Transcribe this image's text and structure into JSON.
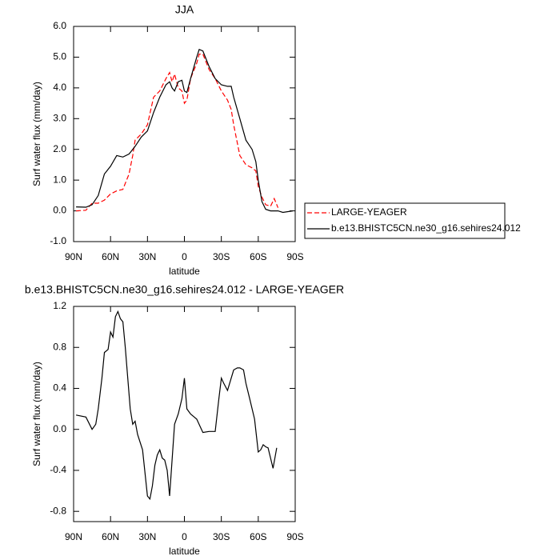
{
  "chart_data": [
    {
      "type": "line",
      "title": "JJA",
      "y_label": "Surf water flux (mm/day)",
      "x_label": "latitude",
      "x": [
        88,
        80,
        75,
        70,
        65,
        60,
        55,
        50,
        45,
        42,
        40,
        35,
        30,
        25,
        20,
        15,
        12,
        10,
        8,
        5,
        2,
        0,
        -2,
        -5,
        -10,
        -12,
        -15,
        -20,
        -25,
        -30,
        -35,
        -38,
        -40,
        -45,
        -50,
        -55,
        -58,
        -60,
        -63,
        -66,
        -70,
        -73,
        -76,
        -80,
        -88
      ],
      "series": [
        {
          "name": "LARGE-YEAGER",
          "color": "#ff0000",
          "line_style": "dashed",
          "values": [
            0.0,
            0.02,
            0.25,
            0.25,
            0.35,
            0.55,
            0.65,
            0.7,
            1.2,
            1.8,
            2.3,
            2.5,
            2.8,
            3.7,
            3.9,
            4.3,
            4.5,
            4.2,
            4.45,
            4.0,
            3.9,
            3.5,
            3.6,
            4.3,
            4.8,
            5.1,
            5.1,
            4.6,
            4.3,
            3.9,
            3.6,
            3.3,
            2.8,
            1.8,
            1.5,
            1.4,
            1.3,
            0.8,
            0.45,
            0.2,
            0.15,
            0.4,
            0.1,
            null,
            null
          ]
        },
        {
          "name": "b.e13.BHISTC5CN.ne30_g16.sehires24.012",
          "color": "#000000",
          "line_style": "solid",
          "values": [
            0.13,
            0.12,
            0.2,
            0.5,
            1.2,
            1.45,
            1.8,
            1.75,
            1.85,
            2.0,
            2.1,
            2.4,
            2.6,
            3.2,
            3.7,
            4.1,
            4.2,
            4.0,
            3.9,
            4.2,
            4.25,
            3.9,
            3.85,
            4.3,
            5.0,
            5.25,
            5.2,
            4.7,
            4.3,
            4.1,
            4.05,
            4.05,
            3.7,
            3.0,
            2.3,
            2.0,
            1.6,
            1.0,
            0.3,
            0.05,
            0.0,
            0.0,
            0.0,
            -0.05,
            0.0
          ]
        }
      ],
      "xlim": [
        90,
        -90
      ],
      "xticks": [
        {
          "value": 90,
          "label": "90N"
        },
        {
          "value": 60,
          "label": "60N"
        },
        {
          "value": 30,
          "label": "30N"
        },
        0,
        {
          "value": -30,
          "label": "30S"
        },
        {
          "value": -60,
          "label": "60S"
        },
        {
          "value": -90,
          "label": "90S"
        }
      ],
      "ylim": [
        -1,
        6
      ],
      "yticks": [
        {
          "value": -1,
          "label": "-1.0"
        },
        {
          "value": 0,
          "label": "0.0"
        },
        {
          "value": 1,
          "label": "1.0"
        },
        {
          "value": 2,
          "label": "2.0"
        },
        {
          "value": 3,
          "label": "3.0"
        },
        {
          "value": 4,
          "label": "4.0"
        },
        {
          "value": 5,
          "label": "5.0"
        },
        {
          "value": 6,
          "label": "6.0"
        }
      ],
      "legend": "right"
    },
    {
      "type": "line",
      "title": "b.e13.BHISTC5CN.ne30_g16.sehires24.012 - LARGE-YEAGER",
      "y_label": "Surf water flux (mm/day)",
      "x_label": "latitude",
      "x": [
        88,
        80,
        75,
        72,
        70,
        67,
        65,
        62,
        60,
        58,
        56,
        54,
        52,
        50,
        48,
        46,
        44,
        42,
        40,
        38,
        34,
        30,
        28,
        26,
        24,
        22,
        20,
        18,
        16,
        14,
        12,
        10,
        8,
        5,
        2,
        0,
        -2,
        -5,
        -8,
        -10,
        -15,
        -20,
        -25,
        -28,
        -30,
        -32,
        -35,
        -38,
        -40,
        -43,
        -45,
        -48,
        -50,
        -53,
        -57,
        -60,
        -62,
        -64,
        -66,
        -68,
        -72,
        -75
      ],
      "values": [
        0.14,
        0.12,
        0.0,
        0.05,
        0.2,
        0.5,
        0.75,
        0.78,
        0.95,
        0.9,
        1.1,
        1.15,
        1.08,
        1.05,
        0.8,
        0.5,
        0.2,
        0.05,
        0.08,
        -0.05,
        -0.2,
        -0.65,
        -0.68,
        -0.55,
        -0.35,
        -0.25,
        -0.2,
        -0.28,
        -0.3,
        -0.4,
        -0.65,
        -0.3,
        0.05,
        0.15,
        0.3,
        0.5,
        0.2,
        0.15,
        0.12,
        0.1,
        -0.03,
        -0.02,
        -0.02,
        0.3,
        0.5,
        0.45,
        0.38,
        0.5,
        0.58,
        0.6,
        0.6,
        0.58,
        0.45,
        0.3,
        0.1,
        -0.22,
        -0.2,
        -0.15,
        -0.17,
        -0.18,
        -0.38,
        -0.18
      ],
      "color": "#000000",
      "xlim": [
        90,
        -90
      ],
      "xticks": [
        {
          "value": 90,
          "label": "90N"
        },
        {
          "value": 60,
          "label": "60N"
        },
        {
          "value": 30,
          "label": "30N"
        },
        0,
        {
          "value": -30,
          "label": "30S"
        },
        {
          "value": -60,
          "label": "60S"
        },
        {
          "value": -90,
          "label": "90S"
        }
      ],
      "ylim": [
        -0.9,
        1.2
      ],
      "yticks": [
        -0.8,
        -0.4,
        {
          "value": 0,
          "label": "0.0"
        },
        0.4,
        0.8,
        1.2
      ]
    }
  ]
}
